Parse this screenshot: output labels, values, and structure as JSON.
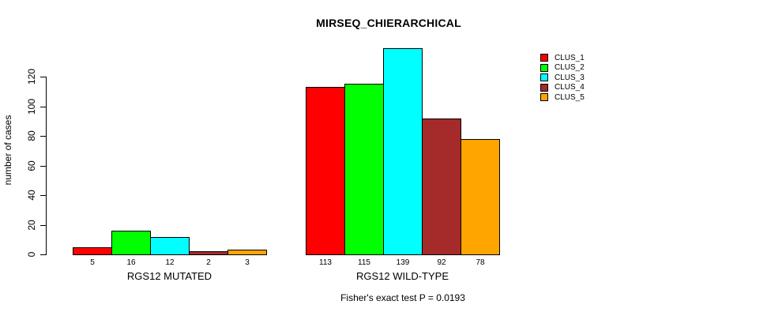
{
  "chart_data": {
    "type": "bar",
    "title": "MIRSEQ_CHIERARCHICAL",
    "ylabel": "number of cases",
    "xlabel": "",
    "ylim": [
      0,
      120
    ],
    "yticks": [
      0,
      20,
      40,
      60,
      80,
      100,
      120
    ],
    "grid": false,
    "legend_position": "right",
    "categories": [
      "RGS12 MUTATED",
      "RGS12 WILD-TYPE"
    ],
    "series": [
      {
        "name": "CLUS_1",
        "color": "#ff0000",
        "values": [
          5,
          113
        ]
      },
      {
        "name": "CLUS_2",
        "color": "#00ff00",
        "values": [
          16,
          115
        ]
      },
      {
        "name": "CLUS_3",
        "color": "#00ffff",
        "values": [
          12,
          139
        ]
      },
      {
        "name": "CLUS_4",
        "color": "#a52a2a",
        "values": [
          2,
          92
        ]
      },
      {
        "name": "CLUS_5",
        "color": "#ffa500",
        "values": [
          3,
          78
        ]
      }
    ],
    "bar_value_labels": [
      [
        5,
        16,
        12,
        2,
        3
      ],
      [
        113,
        115,
        139,
        92,
        78
      ]
    ],
    "annotation": "Fisher's exact test P = 0.0193",
    "axis_color": "#000000",
    "background_color": "#ffffff"
  }
}
